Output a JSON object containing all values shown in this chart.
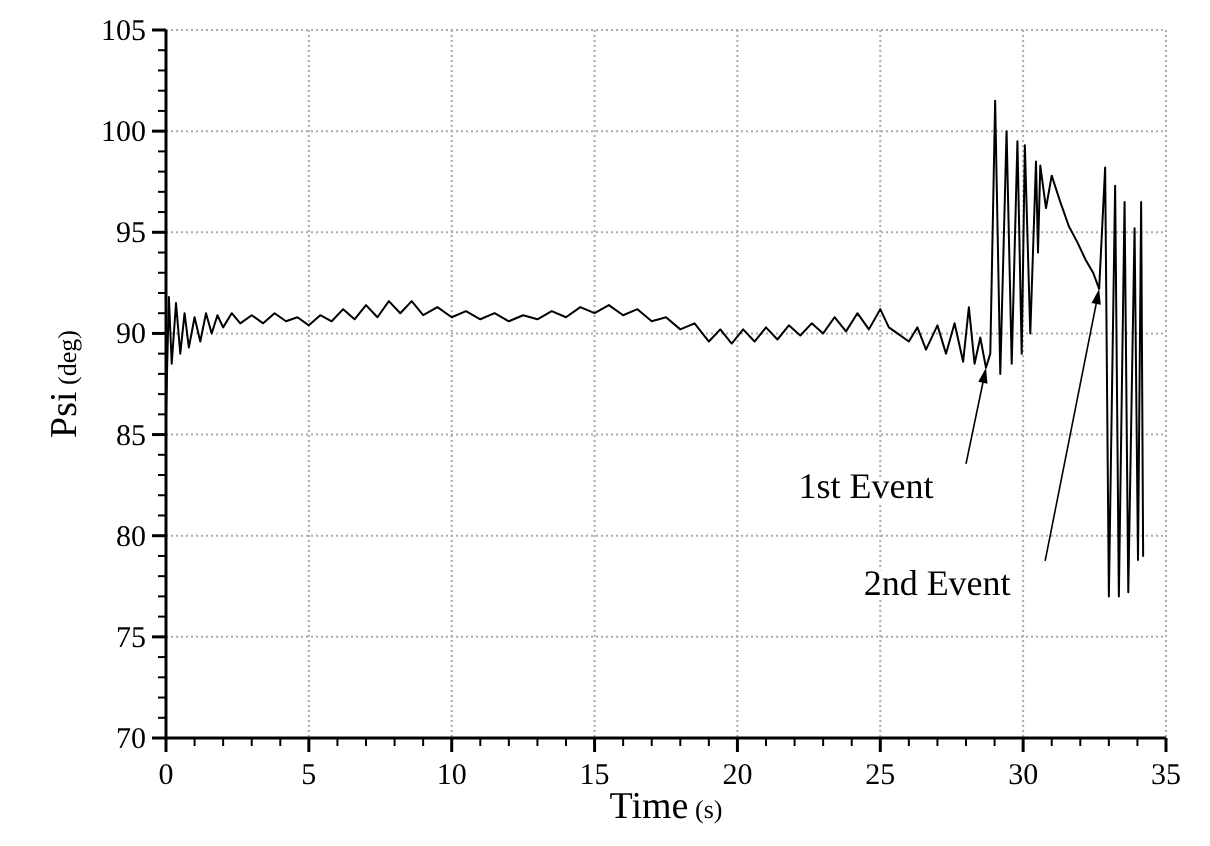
{
  "chart_data": {
    "type": "line",
    "xlabel": "Time (s)",
    "ylabel": "Psi (deg)",
    "xlim": [
      0,
      35
    ],
    "ylim": [
      70,
      105
    ],
    "xticks": [
      0,
      5,
      10,
      15,
      20,
      25,
      30,
      35
    ],
    "yticks": [
      70,
      75,
      80,
      85,
      90,
      95,
      100,
      105
    ],
    "grid": true,
    "line_style": "solid",
    "series": [
      {
        "color": "#000000",
        "x": [
          0,
          0.1,
          0.2,
          0.35,
          0.5,
          0.65,
          0.8,
          1.0,
          1.2,
          1.4,
          1.6,
          1.8,
          2.0,
          2.3,
          2.6,
          3.0,
          3.4,
          3.8,
          4.2,
          4.6,
          5.0,
          5.4,
          5.8,
          6.2,
          6.6,
          7.0,
          7.4,
          7.8,
          8.2,
          8.6,
          9.0,
          9.5,
          10,
          10.5,
          11,
          11.5,
          12,
          12.5,
          13,
          13.5,
          14,
          14.5,
          15,
          15.5,
          16,
          16.5,
          17,
          17.5,
          18,
          18.5,
          19,
          19.4,
          19.8,
          20.2,
          20.6,
          21,
          21.4,
          21.8,
          22.2,
          22.6,
          23,
          23.4,
          23.8,
          24.2,
          24.6,
          25,
          25.3,
          25.6,
          26,
          26.3,
          26.6,
          27,
          27.3,
          27.6,
          27.9,
          28.1,
          28.3,
          28.5,
          28.7,
          28.85,
          29.02,
          29.2,
          29.42,
          29.6,
          29.8,
          29.95,
          30.06,
          30.25,
          30.45,
          30.52,
          30.6,
          30.8,
          31.0,
          31.3,
          31.6,
          31.9,
          32.2,
          32.45,
          32.66,
          32.87,
          33.0,
          33.22,
          33.35,
          33.55,
          33.68,
          33.9,
          34.02,
          34.13,
          34.2
        ],
        "values": [
          86,
          91.8,
          88.5,
          91.5,
          89,
          91,
          89.3,
          90.8,
          89.6,
          91,
          90,
          90.9,
          90.3,
          91,
          90.5,
          90.9,
          90.5,
          91,
          90.6,
          90.8,
          90.4,
          90.9,
          90.6,
          91.2,
          90.7,
          91.4,
          90.8,
          91.6,
          91,
          91.6,
          90.9,
          91.3,
          90.8,
          91.1,
          90.7,
          91,
          90.6,
          90.9,
          90.7,
          91.1,
          90.8,
          91.3,
          91,
          91.4,
          90.9,
          91.2,
          90.6,
          90.8,
          90.2,
          90.5,
          89.6,
          90.2,
          89.5,
          90.2,
          89.6,
          90.3,
          89.7,
          90.4,
          89.9,
          90.5,
          90,
          90.8,
          90.1,
          91,
          90.2,
          91.2,
          90.3,
          90,
          89.6,
          90.3,
          89.2,
          90.4,
          89,
          90.5,
          88.6,
          91.3,
          88.5,
          89.8,
          88.3,
          89,
          101.5,
          88,
          100,
          88.5,
          99.5,
          89,
          99.3,
          90,
          98.5,
          94,
          98.3,
          96.2,
          97.8,
          96.5,
          95.3,
          94.5,
          93.6,
          93,
          92.2,
          98.2,
          77,
          97.3,
          77,
          96.5,
          77.2,
          95.2,
          78.8,
          96.5,
          79
        ]
      }
    ],
    "annotations": [
      {
        "text": "1st Event",
        "x": 28.7,
        "y": 88.3
      },
      {
        "text": "2nd Event",
        "x": 32.66,
        "y": 92.2
      }
    ]
  }
}
